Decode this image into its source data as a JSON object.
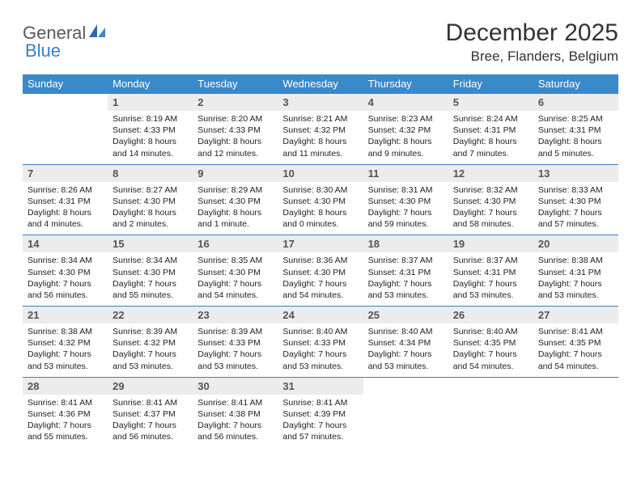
{
  "logo": {
    "part1": "General",
    "part2": "Blue"
  },
  "title": "December 2025",
  "location": "Bree, Flanders, Belgium",
  "colors": {
    "header_bg": "#3a89c9",
    "header_text": "#ffffff",
    "border": "#3a7fc4",
    "daynum_bg": "#ececec",
    "daynum_text": "#555555",
    "body_text": "#222222",
    "logo_gray": "#5a5a5a",
    "logo_blue": "#3a7fc4"
  },
  "weekdays": [
    "Sunday",
    "Monday",
    "Tuesday",
    "Wednesday",
    "Thursday",
    "Friday",
    "Saturday"
  ],
  "start_offset": 1,
  "days": [
    {
      "n": "1",
      "sunrise": "Sunrise: 8:19 AM",
      "sunset": "Sunset: 4:33 PM",
      "daylight": "Daylight: 8 hours and 14 minutes."
    },
    {
      "n": "2",
      "sunrise": "Sunrise: 8:20 AM",
      "sunset": "Sunset: 4:33 PM",
      "daylight": "Daylight: 8 hours and 12 minutes."
    },
    {
      "n": "3",
      "sunrise": "Sunrise: 8:21 AM",
      "sunset": "Sunset: 4:32 PM",
      "daylight": "Daylight: 8 hours and 11 minutes."
    },
    {
      "n": "4",
      "sunrise": "Sunrise: 8:23 AM",
      "sunset": "Sunset: 4:32 PM",
      "daylight": "Daylight: 8 hours and 9 minutes."
    },
    {
      "n": "5",
      "sunrise": "Sunrise: 8:24 AM",
      "sunset": "Sunset: 4:31 PM",
      "daylight": "Daylight: 8 hours and 7 minutes."
    },
    {
      "n": "6",
      "sunrise": "Sunrise: 8:25 AM",
      "sunset": "Sunset: 4:31 PM",
      "daylight": "Daylight: 8 hours and 5 minutes."
    },
    {
      "n": "7",
      "sunrise": "Sunrise: 8:26 AM",
      "sunset": "Sunset: 4:31 PM",
      "daylight": "Daylight: 8 hours and 4 minutes."
    },
    {
      "n": "8",
      "sunrise": "Sunrise: 8:27 AM",
      "sunset": "Sunset: 4:30 PM",
      "daylight": "Daylight: 8 hours and 2 minutes."
    },
    {
      "n": "9",
      "sunrise": "Sunrise: 8:29 AM",
      "sunset": "Sunset: 4:30 PM",
      "daylight": "Daylight: 8 hours and 1 minute."
    },
    {
      "n": "10",
      "sunrise": "Sunrise: 8:30 AM",
      "sunset": "Sunset: 4:30 PM",
      "daylight": "Daylight: 8 hours and 0 minutes."
    },
    {
      "n": "11",
      "sunrise": "Sunrise: 8:31 AM",
      "sunset": "Sunset: 4:30 PM",
      "daylight": "Daylight: 7 hours and 59 minutes."
    },
    {
      "n": "12",
      "sunrise": "Sunrise: 8:32 AM",
      "sunset": "Sunset: 4:30 PM",
      "daylight": "Daylight: 7 hours and 58 minutes."
    },
    {
      "n": "13",
      "sunrise": "Sunrise: 8:33 AM",
      "sunset": "Sunset: 4:30 PM",
      "daylight": "Daylight: 7 hours and 57 minutes."
    },
    {
      "n": "14",
      "sunrise": "Sunrise: 8:34 AM",
      "sunset": "Sunset: 4:30 PM",
      "daylight": "Daylight: 7 hours and 56 minutes."
    },
    {
      "n": "15",
      "sunrise": "Sunrise: 8:34 AM",
      "sunset": "Sunset: 4:30 PM",
      "daylight": "Daylight: 7 hours and 55 minutes."
    },
    {
      "n": "16",
      "sunrise": "Sunrise: 8:35 AM",
      "sunset": "Sunset: 4:30 PM",
      "daylight": "Daylight: 7 hours and 54 minutes."
    },
    {
      "n": "17",
      "sunrise": "Sunrise: 8:36 AM",
      "sunset": "Sunset: 4:30 PM",
      "daylight": "Daylight: 7 hours and 54 minutes."
    },
    {
      "n": "18",
      "sunrise": "Sunrise: 8:37 AM",
      "sunset": "Sunset: 4:31 PM",
      "daylight": "Daylight: 7 hours and 53 minutes."
    },
    {
      "n": "19",
      "sunrise": "Sunrise: 8:37 AM",
      "sunset": "Sunset: 4:31 PM",
      "daylight": "Daylight: 7 hours and 53 minutes."
    },
    {
      "n": "20",
      "sunrise": "Sunrise: 8:38 AM",
      "sunset": "Sunset: 4:31 PM",
      "daylight": "Daylight: 7 hours and 53 minutes."
    },
    {
      "n": "21",
      "sunrise": "Sunrise: 8:38 AM",
      "sunset": "Sunset: 4:32 PM",
      "daylight": "Daylight: 7 hours and 53 minutes."
    },
    {
      "n": "22",
      "sunrise": "Sunrise: 8:39 AM",
      "sunset": "Sunset: 4:32 PM",
      "daylight": "Daylight: 7 hours and 53 minutes."
    },
    {
      "n": "23",
      "sunrise": "Sunrise: 8:39 AM",
      "sunset": "Sunset: 4:33 PM",
      "daylight": "Daylight: 7 hours and 53 minutes."
    },
    {
      "n": "24",
      "sunrise": "Sunrise: 8:40 AM",
      "sunset": "Sunset: 4:33 PM",
      "daylight": "Daylight: 7 hours and 53 minutes."
    },
    {
      "n": "25",
      "sunrise": "Sunrise: 8:40 AM",
      "sunset": "Sunset: 4:34 PM",
      "daylight": "Daylight: 7 hours and 53 minutes."
    },
    {
      "n": "26",
      "sunrise": "Sunrise: 8:40 AM",
      "sunset": "Sunset: 4:35 PM",
      "daylight": "Daylight: 7 hours and 54 minutes."
    },
    {
      "n": "27",
      "sunrise": "Sunrise: 8:41 AM",
      "sunset": "Sunset: 4:35 PM",
      "daylight": "Daylight: 7 hours and 54 minutes."
    },
    {
      "n": "28",
      "sunrise": "Sunrise: 8:41 AM",
      "sunset": "Sunset: 4:36 PM",
      "daylight": "Daylight: 7 hours and 55 minutes."
    },
    {
      "n": "29",
      "sunrise": "Sunrise: 8:41 AM",
      "sunset": "Sunset: 4:37 PM",
      "daylight": "Daylight: 7 hours and 56 minutes."
    },
    {
      "n": "30",
      "sunrise": "Sunrise: 8:41 AM",
      "sunset": "Sunset: 4:38 PM",
      "daylight": "Daylight: 7 hours and 56 minutes."
    },
    {
      "n": "31",
      "sunrise": "Sunrise: 8:41 AM",
      "sunset": "Sunset: 4:39 PM",
      "daylight": "Daylight: 7 hours and 57 minutes."
    }
  ]
}
